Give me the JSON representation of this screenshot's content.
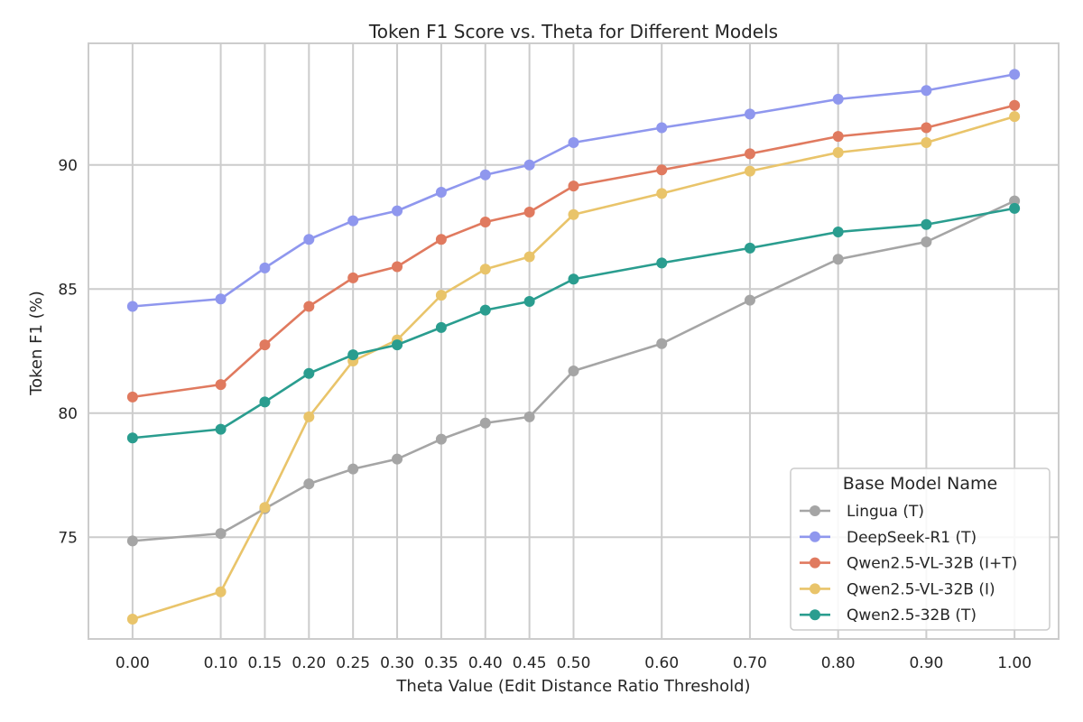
{
  "chart_data": {
    "type": "line",
    "title": "Token F1 Score vs. Theta for Different Models",
    "xlabel": "Theta Value (Edit Distance Ratio Threshold)",
    "ylabel": "Token F1 (%)",
    "x": [
      0.0,
      0.1,
      0.15,
      0.2,
      0.25,
      0.3,
      0.35,
      0.4,
      0.45,
      0.5,
      0.6,
      0.7,
      0.8,
      0.9,
      1.0
    ],
    "x_tick_labels": [
      "0.00",
      "0.10",
      "0.15",
      "0.20",
      "0.25",
      "0.30",
      "0.35",
      "0.40",
      "0.45",
      "0.50",
      "0.60",
      "0.70",
      "0.80",
      "0.90",
      "1.00"
    ],
    "y_ticks": [
      75,
      80,
      85,
      90
    ],
    "y_tick_labels": [
      "75",
      "80",
      "85",
      "90"
    ],
    "xlim": [
      -0.05,
      1.05
    ],
    "ylim": [
      70.9,
      94.9
    ],
    "grid": true,
    "legend": {
      "title": "Base Model Name",
      "placement": "lower-right"
    },
    "series": [
      {
        "name": "Lingua (T)",
        "color": "#a5a5a5",
        "values": [
          74.85,
          75.15,
          76.15,
          77.15,
          77.75,
          78.15,
          78.95,
          79.6,
          79.85,
          81.7,
          82.8,
          84.55,
          86.2,
          86.9,
          88.55
        ]
      },
      {
        "name": "DeepSeek-R1 (T)",
        "color": "#8f97ee",
        "values": [
          84.3,
          84.6,
          85.85,
          87.0,
          87.75,
          88.15,
          88.9,
          89.6,
          90.0,
          90.9,
          91.5,
          92.05,
          92.65,
          93.0,
          93.65
        ]
      },
      {
        "name": "Qwen2.5-VL-32B (I+T)",
        "color": "#e07a5f",
        "values": [
          80.65,
          81.15,
          82.75,
          84.3,
          85.45,
          85.9,
          87.0,
          87.7,
          88.1,
          89.15,
          89.8,
          90.45,
          91.15,
          91.5,
          92.4
        ]
      },
      {
        "name": "Qwen2.5-VL-32B (I)",
        "color": "#e9c46a",
        "values": [
          71.7,
          72.8,
          76.2,
          79.85,
          82.1,
          82.95,
          84.75,
          85.8,
          86.3,
          88.0,
          88.85,
          89.75,
          90.5,
          90.9,
          91.95
        ]
      },
      {
        "name": "Qwen2.5-32B (T)",
        "color": "#2a9d8f",
        "values": [
          79.0,
          79.35,
          80.45,
          81.6,
          82.35,
          82.75,
          83.45,
          84.15,
          84.5,
          85.4,
          86.05,
          86.65,
          87.3,
          87.6,
          88.25
        ]
      }
    ]
  }
}
